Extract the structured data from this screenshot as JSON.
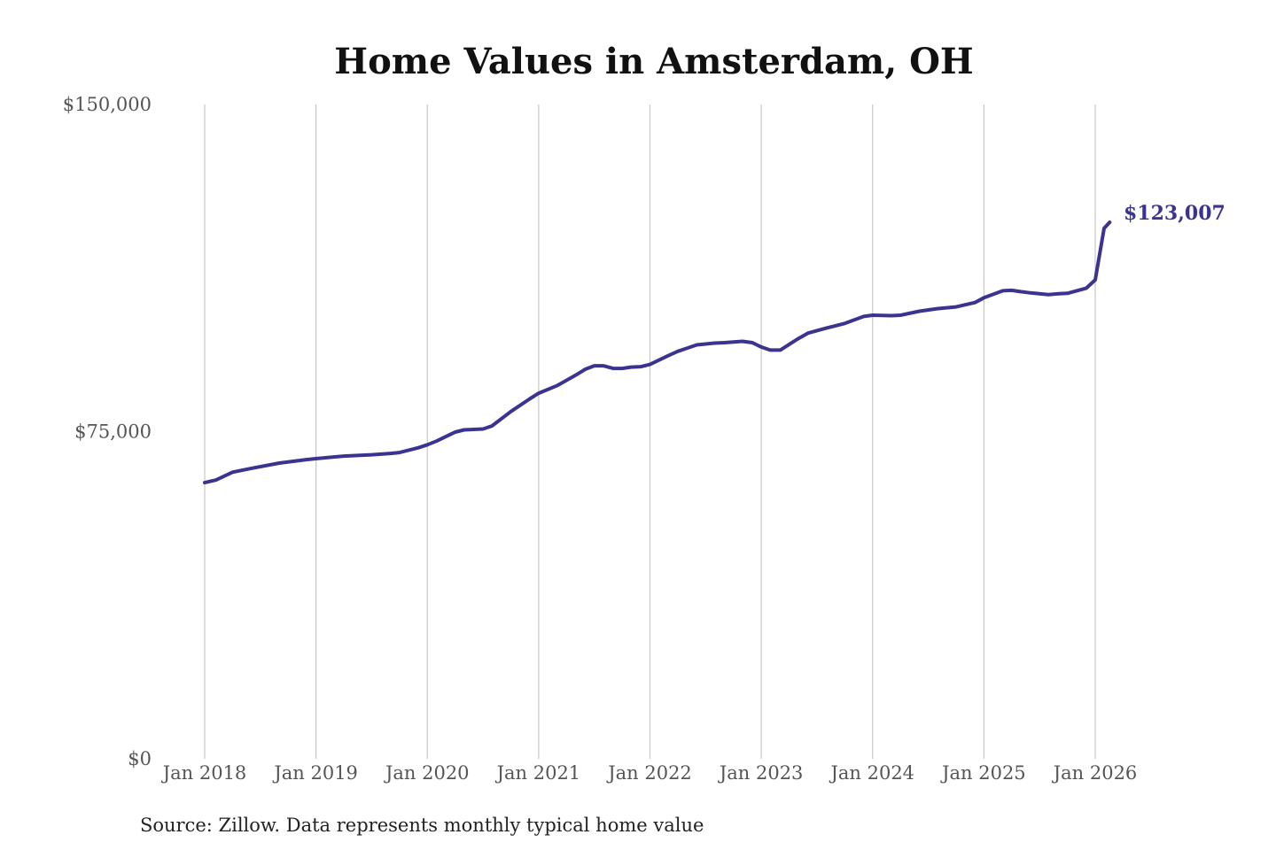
{
  "chart_data": {
    "type": "line",
    "title": "Home Values in Amsterdam, OH",
    "source": "Source: Zillow. Data represents monthly typical home value",
    "color": "#3a3390",
    "ylim": [
      0,
      150000
    ],
    "y_ticks": [
      {
        "value": 0,
        "label": "$0"
      },
      {
        "value": 75000,
        "label": "$75,000"
      },
      {
        "value": 150000,
        "label": "$150,000"
      }
    ],
    "x_ticks": [
      {
        "value": 2018,
        "label": "Jan 2018"
      },
      {
        "value": 2019,
        "label": "Jan 2019"
      },
      {
        "value": 2020,
        "label": "Jan 2020"
      },
      {
        "value": 2021,
        "label": "Jan 2021"
      },
      {
        "value": 2022,
        "label": "Jan 2022"
      },
      {
        "value": 2023,
        "label": "Jan 2023"
      },
      {
        "value": 2024,
        "label": "Jan 2024"
      },
      {
        "value": 2025,
        "label": "Jan 2025"
      },
      {
        "value": 2026,
        "label": "Jan 2026"
      }
    ],
    "xlim": [
      2018,
      2026
    ],
    "grid": "vertical",
    "end_label": "$123,007",
    "series": [
      {
        "values": [
          [
            2018.0,
            63300
          ],
          [
            2018.1,
            63900
          ],
          [
            2018.25,
            65700
          ],
          [
            2018.42,
            66600
          ],
          [
            2018.67,
            67800
          ],
          [
            2018.92,
            68600
          ],
          [
            2019.0,
            68800
          ],
          [
            2019.25,
            69400
          ],
          [
            2019.5,
            69700
          ],
          [
            2019.67,
            70000
          ],
          [
            2019.75,
            70200
          ],
          [
            2019.92,
            71300
          ],
          [
            2020.0,
            72000
          ],
          [
            2020.08,
            72800
          ],
          [
            2020.25,
            74900
          ],
          [
            2020.33,
            75400
          ],
          [
            2020.5,
            75600
          ],
          [
            2020.58,
            76300
          ],
          [
            2020.75,
            79600
          ],
          [
            2020.92,
            82500
          ],
          [
            2021.0,
            83800
          ],
          [
            2021.17,
            85600
          ],
          [
            2021.33,
            87900
          ],
          [
            2021.42,
            89300
          ],
          [
            2021.5,
            90100
          ],
          [
            2021.58,
            90100
          ],
          [
            2021.67,
            89500
          ],
          [
            2021.75,
            89500
          ],
          [
            2021.83,
            89800
          ],
          [
            2021.92,
            89900
          ],
          [
            2022.0,
            90400
          ],
          [
            2022.17,
            92500
          ],
          [
            2022.25,
            93400
          ],
          [
            2022.33,
            94100
          ],
          [
            2022.42,
            94900
          ],
          [
            2022.58,
            95300
          ],
          [
            2022.67,
            95400
          ],
          [
            2022.83,
            95700
          ],
          [
            2022.92,
            95400
          ],
          [
            2023.0,
            94400
          ],
          [
            2023.08,
            93700
          ],
          [
            2023.17,
            93700
          ],
          [
            2023.33,
            96300
          ],
          [
            2023.42,
            97600
          ],
          [
            2023.58,
            98700
          ],
          [
            2023.75,
            99800
          ],
          [
            2023.92,
            101400
          ],
          [
            2024.0,
            101700
          ],
          [
            2024.17,
            101600
          ],
          [
            2024.25,
            101700
          ],
          [
            2024.42,
            102600
          ],
          [
            2024.58,
            103200
          ],
          [
            2024.75,
            103600
          ],
          [
            2024.92,
            104600
          ],
          [
            2025.0,
            105700
          ],
          [
            2025.17,
            107300
          ],
          [
            2025.25,
            107400
          ],
          [
            2025.33,
            107100
          ],
          [
            2025.42,
            106800
          ],
          [
            2025.58,
            106400
          ],
          [
            2025.67,
            106600
          ],
          [
            2025.75,
            106700
          ],
          [
            2025.92,
            107900
          ],
          [
            2026.0,
            109800
          ],
          [
            2026.08,
            121600
          ],
          [
            2026.13,
            123007
          ]
        ]
      }
    ]
  }
}
